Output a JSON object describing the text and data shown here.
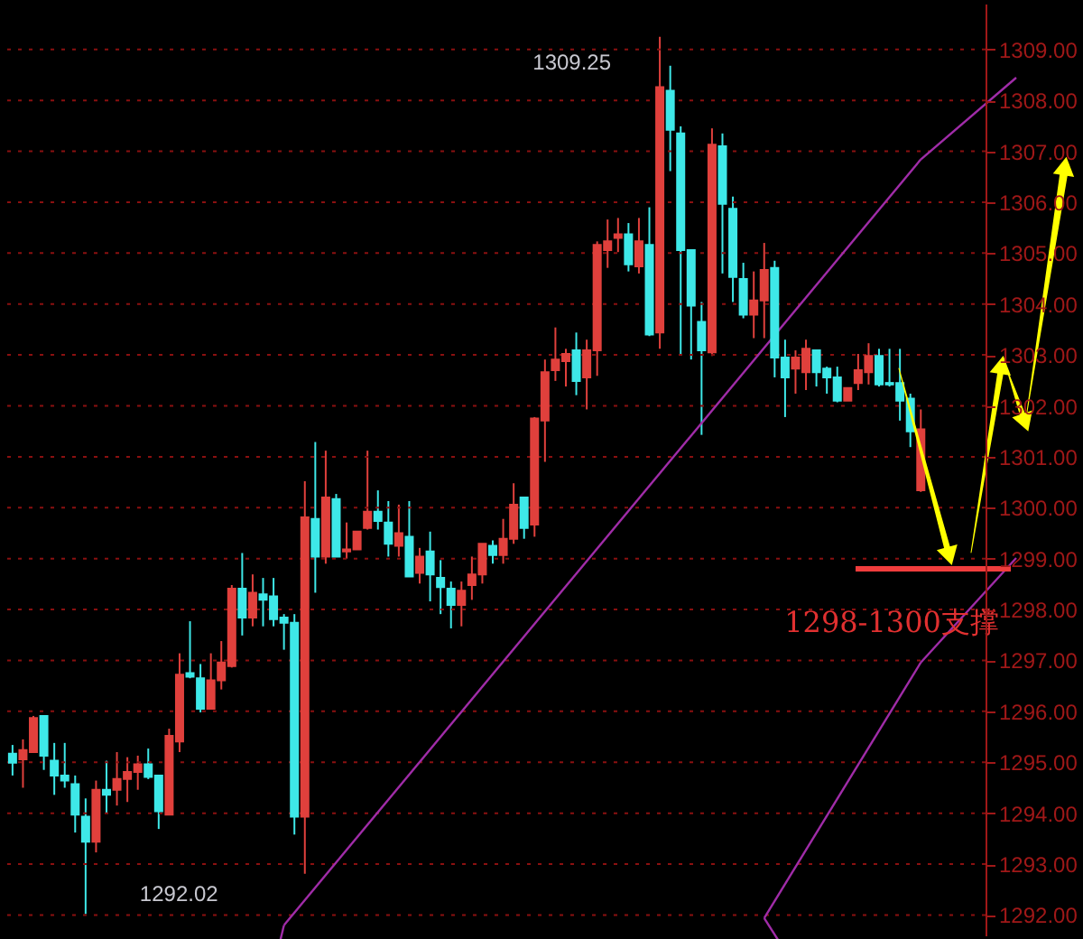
{
  "chart_data": {
    "type": "candlestick",
    "categories": [
      null,
      null,
      null,
      null,
      null,
      null,
      null,
      null,
      null,
      null,
      null,
      null,
      null,
      null,
      null,
      null,
      null,
      null,
      null,
      null,
      null,
      null,
      null,
      null,
      null,
      null,
      null,
      null,
      null,
      null,
      null,
      null,
      null,
      null,
      null,
      null,
      null,
      null,
      null,
      null,
      null,
      null,
      null,
      null,
      null,
      null,
      null,
      null,
      null,
      null,
      null,
      null,
      null,
      null,
      null,
      null,
      null,
      null,
      null,
      null,
      null,
      null,
      null,
      null,
      null,
      null,
      null,
      null,
      null,
      null,
      null,
      null,
      null,
      null,
      null,
      null,
      null,
      null,
      null,
      null,
      null,
      null,
      null,
      null,
      null,
      null,
      null,
      null
    ],
    "ohlc": [
      [
        1295.17,
        1295.34,
        1294.74,
        1294.99
      ],
      [
        1295.06,
        1295.45,
        1294.5,
        1295.24
      ],
      [
        1295.2,
        1295.91,
        1295.2,
        1295.87
      ],
      [
        1295.91,
        1295.91,
        1294.85,
        1295.13
      ],
      [
        1295.03,
        1295.38,
        1294.36,
        1294.74
      ],
      [
        1294.74,
        1295.38,
        1294.5,
        1294.64
      ],
      [
        1294.57,
        1294.74,
        1293.62,
        1293.97
      ],
      [
        1293.93,
        1294.29,
        1292.02,
        1293.44
      ],
      [
        1293.44,
        1294.64,
        1293.23,
        1294.46
      ],
      [
        1294.46,
        1295.03,
        1294.01,
        1294.36
      ],
      [
        1294.46,
        1295.2,
        1294.15,
        1294.67
      ],
      [
        1294.67,
        1295.1,
        1294.22,
        1294.81
      ],
      [
        1294.81,
        1295.13,
        1294.46,
        1294.96
      ],
      [
        1294.96,
        1295.27,
        1294.67,
        1294.71
      ],
      [
        1294.74,
        1294.74,
        1293.69,
        1294.04
      ],
      [
        1293.97,
        1295.66,
        1293.97,
        1295.52
      ],
      [
        1295.41,
        1297.14,
        1295.2,
        1296.72
      ],
      [
        1296.75,
        1297.77,
        1296.65,
        1296.68
      ],
      [
        1296.65,
        1296.93,
        1295.98,
        1296.05
      ],
      [
        1296.05,
        1297.14,
        1296.05,
        1296.61
      ],
      [
        1296.61,
        1297.38,
        1296.43,
        1296.96
      ],
      [
        1296.89,
        1298.48,
        1296.86,
        1298.41
      ],
      [
        1298.41,
        1299.11,
        1297.49,
        1297.84
      ],
      [
        1297.84,
        1298.69,
        1297.67,
        1298.33
      ],
      [
        1298.3,
        1298.62,
        1297.67,
        1298.19
      ],
      [
        1298.26,
        1298.62,
        1297.67,
        1297.81
      ],
      [
        1297.84,
        1297.91,
        1297.21,
        1297.74
      ],
      [
        1297.74,
        1297.91,
        1293.58,
        1293.93
      ],
      [
        1293.93,
        1300.52,
        1292.81,
        1299.81
      ],
      [
        1299.78,
        1301.29,
        1298.33,
        1299.04
      ],
      [
        1299.04,
        1301.12,
        1298.9,
        1300.2
      ],
      [
        1300.17,
        1300.27,
        1299.04,
        1299.04
      ],
      [
        1299.14,
        1299.71,
        1299.0,
        1299.18
      ],
      [
        1299.18,
        1299.53,
        1299.18,
        1299.53
      ],
      [
        1299.6,
        1301.12,
        1299.57,
        1299.92
      ],
      [
        1299.92,
        1300.34,
        1299.57,
        1299.74
      ],
      [
        1299.71,
        1300.13,
        1299.04,
        1299.29
      ],
      [
        1299.25,
        1300.06,
        1299.04,
        1299.5
      ],
      [
        1299.43,
        1300.13,
        1298.65,
        1298.65
      ],
      [
        1298.72,
        1299.21,
        1298.51,
        1299.04
      ],
      [
        1299.14,
        1299.53,
        1298.16,
        1298.69
      ],
      [
        1298.62,
        1298.97,
        1297.91,
        1298.44
      ],
      [
        1298.41,
        1298.55,
        1297.63,
        1298.09
      ],
      [
        1298.09,
        1298.55,
        1297.67,
        1298.37
      ],
      [
        1298.48,
        1299.04,
        1298.19,
        1298.69
      ],
      [
        1298.69,
        1299.29,
        1298.51,
        1299.29
      ],
      [
        1299.25,
        1299.36,
        1298.9,
        1299.07
      ],
      [
        1299.07,
        1299.78,
        1298.9,
        1299.39
      ],
      [
        1299.39,
        1300.48,
        1299.29,
        1300.06
      ],
      [
        1300.2,
        1300.2,
        1299.39,
        1299.6
      ],
      [
        1299.67,
        1301.78,
        1299.43,
        1301.75
      ],
      [
        1301.71,
        1302.91,
        1300.9,
        1302.66
      ],
      [
        1302.7,
        1303.54,
        1302.49,
        1302.91
      ],
      [
        1302.88,
        1303.12,
        1302.38,
        1303.02
      ],
      [
        1303.09,
        1303.44,
        1302.21,
        1302.49
      ],
      [
        1302.56,
        1303.3,
        1301.93,
        1303.09
      ],
      [
        1303.09,
        1305.23,
        1302.59,
        1305.16
      ],
      [
        1305.06,
        1305.66,
        1304.71,
        1305.23
      ],
      [
        1305.3,
        1305.69,
        1305.02,
        1305.37
      ],
      [
        1305.37,
        1305.59,
        1304.64,
        1304.78
      ],
      [
        1304.74,
        1305.69,
        1304.6,
        1305.23
      ],
      [
        1305.16,
        1305.9,
        1303.37,
        1303.4
      ],
      [
        1303.44,
        1309.25,
        1303.12,
        1308.26
      ],
      [
        1308.19,
        1308.68,
        1306.61,
        1307.42
      ],
      [
        1307.35,
        1307.49,
        1303.02,
        1305.06
      ],
      [
        1305.06,
        1305.06,
        1302.91,
        1303.97
      ],
      [
        1303.65,
        1304.04,
        1301.43,
        1303.09
      ],
      [
        1303.05,
        1307.45,
        1302.98,
        1307.13
      ],
      [
        1307.1,
        1307.35,
        1304.6,
        1305.97
      ],
      [
        1305.87,
        1306.11,
        1304.04,
        1304.53
      ],
      [
        1304.49,
        1304.81,
        1303.72,
        1303.79
      ],
      [
        1303.79,
        1304.64,
        1303.33,
        1304.07
      ],
      [
        1304.07,
        1305.2,
        1303.33,
        1304.67
      ],
      [
        1304.71,
        1304.85,
        1302.56,
        1302.95
      ],
      [
        1302.95,
        1303.3,
        1301.78,
        1302.56
      ],
      [
        1302.73,
        1303.09,
        1302.24,
        1302.95
      ],
      [
        1302.66,
        1303.3,
        1302.31,
        1303.12
      ],
      [
        1303.09,
        1303.09,
        1302.38,
        1302.66
      ],
      [
        1302.73,
        1302.77,
        1302.24,
        1302.56
      ],
      [
        1302.56,
        1302.77,
        1302.07,
        1302.1
      ],
      [
        1302.1,
        1302.35,
        1302.1,
        1302.35
      ],
      [
        1302.45,
        1303.02,
        1302.31,
        1302.7
      ],
      [
        1302.66,
        1303.23,
        1302.42,
        1302.98
      ],
      [
        1302.98,
        1303.12,
        1302.38,
        1302.42
      ],
      [
        1302.45,
        1303.12,
        1302.38,
        1302.42
      ],
      [
        1302.45,
        1303.12,
        1301.71,
        1302.1
      ],
      [
        1302.14,
        1302.24,
        1301.19,
        1301.5
      ],
      [
        1300.34,
        1301.93,
        1300.31,
        1301.54
      ]
    ],
    "colors": [
      "#3ee8e8",
      "#e0403c",
      "#e0403c",
      "#3ee8e8",
      "#3ee8e8",
      "#3ee8e8",
      "#3ee8e8",
      "#3ee8e8",
      "#e0403c",
      "#3ee8e8",
      "#e0403c",
      "#e0403c",
      "#e0403c",
      "#3ee8e8",
      "#3ee8e8",
      "#e0403c",
      "#e0403c",
      "#3ee8e8",
      "#3ee8e8",
      "#e0403c",
      "#e0403c",
      "#e0403c",
      "#3ee8e8",
      "#e0403c",
      "#3ee8e8",
      "#3ee8e8",
      "#3ee8e8",
      "#3ee8e8",
      "#e0403c",
      "#3ee8e8",
      "#e0403c",
      "#3ee8e8",
      "#e0403c",
      "#e0403c",
      "#e0403c",
      "#3ee8e8",
      "#3ee8e8",
      "#e0403c",
      "#3ee8e8",
      "#e0403c",
      "#3ee8e8",
      "#3ee8e8",
      "#3ee8e8",
      "#e0403c",
      "#e0403c",
      "#e0403c",
      "#3ee8e8",
      "#e0403c",
      "#e0403c",
      "#3ee8e8",
      "#e0403c",
      "#e0403c",
      "#e0403c",
      "#e0403c",
      "#3ee8e8",
      "#e0403c",
      "#e0403c",
      "#e0403c",
      "#e0403c",
      "#3ee8e8",
      "#e0403c",
      "#3ee8e8",
      "#e0403c",
      "#3ee8e8",
      "#3ee8e8",
      "#3ee8e8",
      "#3ee8e8",
      "#e0403c",
      "#3ee8e8",
      "#3ee8e8",
      "#3ee8e8",
      "#e0403c",
      "#e0403c",
      "#3ee8e8",
      "#3ee8e8",
      "#e0403c",
      "#e0403c",
      "#3ee8e8",
      "#3ee8e8",
      "#3ee8e8",
      "#e0403c",
      "#e0403c",
      "#e0403c",
      "#3ee8e8",
      "#3ee8e8",
      "#3ee8e8",
      "#3ee8e8",
      "#e0403c"
    ],
    "series": [
      {
        "type": "line",
        "color": "#a02ca8",
        "values": [
          null,
          null,
          null,
          null,
          null,
          null,
          null,
          null,
          null,
          null,
          null,
          null,
          null,
          null,
          null,
          null,
          null,
          null,
          null,
          null,
          null,
          null,
          null,
          null,
          null,
          null,
          1291.8,
          null,
          null,
          null,
          null,
          null,
          null,
          null,
          null,
          null,
          null,
          null,
          null,
          null,
          null,
          null,
          null,
          null,
          null,
          null,
          null,
          null,
          null,
          null,
          null,
          null,
          null,
          null,
          null,
          null,
          null,
          null,
          null,
          null,
          null,
          null,
          null,
          null,
          null,
          null,
          null,
          null,
          null,
          null,
          null,
          null,
          null,
          null,
          null,
          null,
          null,
          null,
          null,
          null,
          null,
          null,
          null,
          null,
          null,
          null,
          null,
          1306.84
        ]
      },
      {
        "type": "line",
        "color": "#a02ca8",
        "values": [
          null,
          null,
          null,
          null,
          null,
          null,
          null,
          null,
          null,
          null,
          null,
          null,
          null,
          null,
          null,
          null,
          null,
          null,
          null,
          null,
          null,
          null,
          null,
          null,
          null,
          null,
          null,
          null,
          null,
          null,
          null,
          null,
          null,
          null,
          null,
          null,
          null,
          null,
          null,
          null,
          null,
          null,
          null,
          null,
          null,
          null,
          null,
          null,
          null,
          null,
          null,
          null,
          null,
          null,
          null,
          null,
          null,
          null,
          null,
          null,
          null,
          null,
          null,
          null,
          null,
          null,
          null,
          null,
          null,
          null,
          null,
          null,
          1291.94,
          null,
          null,
          null,
          null,
          null,
          null,
          null,
          null,
          null,
          null,
          null,
          null,
          null,
          null,
          1296.96
        ]
      }
    ],
    "ylim": [
      1291.6,
      1309.9
    ],
    "yticks": [
      {
        "value": 1292,
        "label": "1292.00"
      },
      {
        "value": 1293,
        "label": "1293.00"
      },
      {
        "value": 1294,
        "label": "1294.00"
      },
      {
        "value": 1295,
        "label": "1295.00"
      },
      {
        "value": 1296,
        "label": "1296.00"
      },
      {
        "value": 1297,
        "label": "1297.00"
      },
      {
        "value": 1298,
        "label": "1298.00"
      },
      {
        "value": 1299,
        "label": "1299.00"
      },
      {
        "value": 1300,
        "label": "1300.00"
      },
      {
        "value": 1301,
        "label": "1301.00"
      },
      {
        "value": 1302,
        "label": "1302.00"
      },
      {
        "value": 1303,
        "label": "1303.00"
      },
      {
        "value": 1304,
        "label": "1304.00"
      },
      {
        "value": 1305,
        "label": "1305.00"
      },
      {
        "value": 1306,
        "label": "1306.00"
      },
      {
        "value": 1307,
        "label": "1307.00"
      },
      {
        "value": 1308,
        "label": "1308.00"
      },
      {
        "value": 1309,
        "label": "1309.00"
      }
    ],
    "grid": "y",
    "tick_labels": "y",
    "annotations": [
      "1309.25",
      "1292.02",
      "1298-1300支撑"
    ]
  }
}
